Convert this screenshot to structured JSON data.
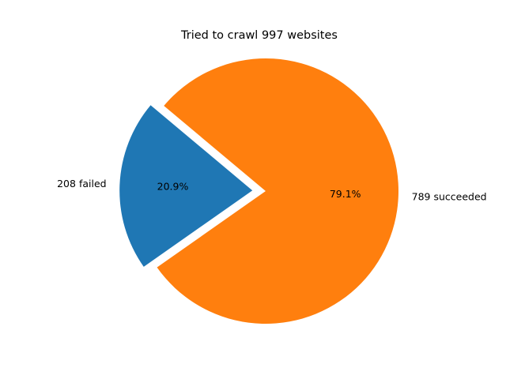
{
  "chart_data": {
    "type": "pie",
    "title": "Tried to crawl 997 websites",
    "slices": [
      {
        "label": "208 failed",
        "value": 208,
        "percent_label": "20.9%",
        "color": "#1f77b4",
        "exploded": true
      },
      {
        "label": "789 succeeded",
        "value": 789,
        "percent_label": "79.1%",
        "color": "#ff7f0e",
        "exploded": false
      }
    ],
    "start_angle_deg": 140,
    "direction": "counterclockwise"
  }
}
